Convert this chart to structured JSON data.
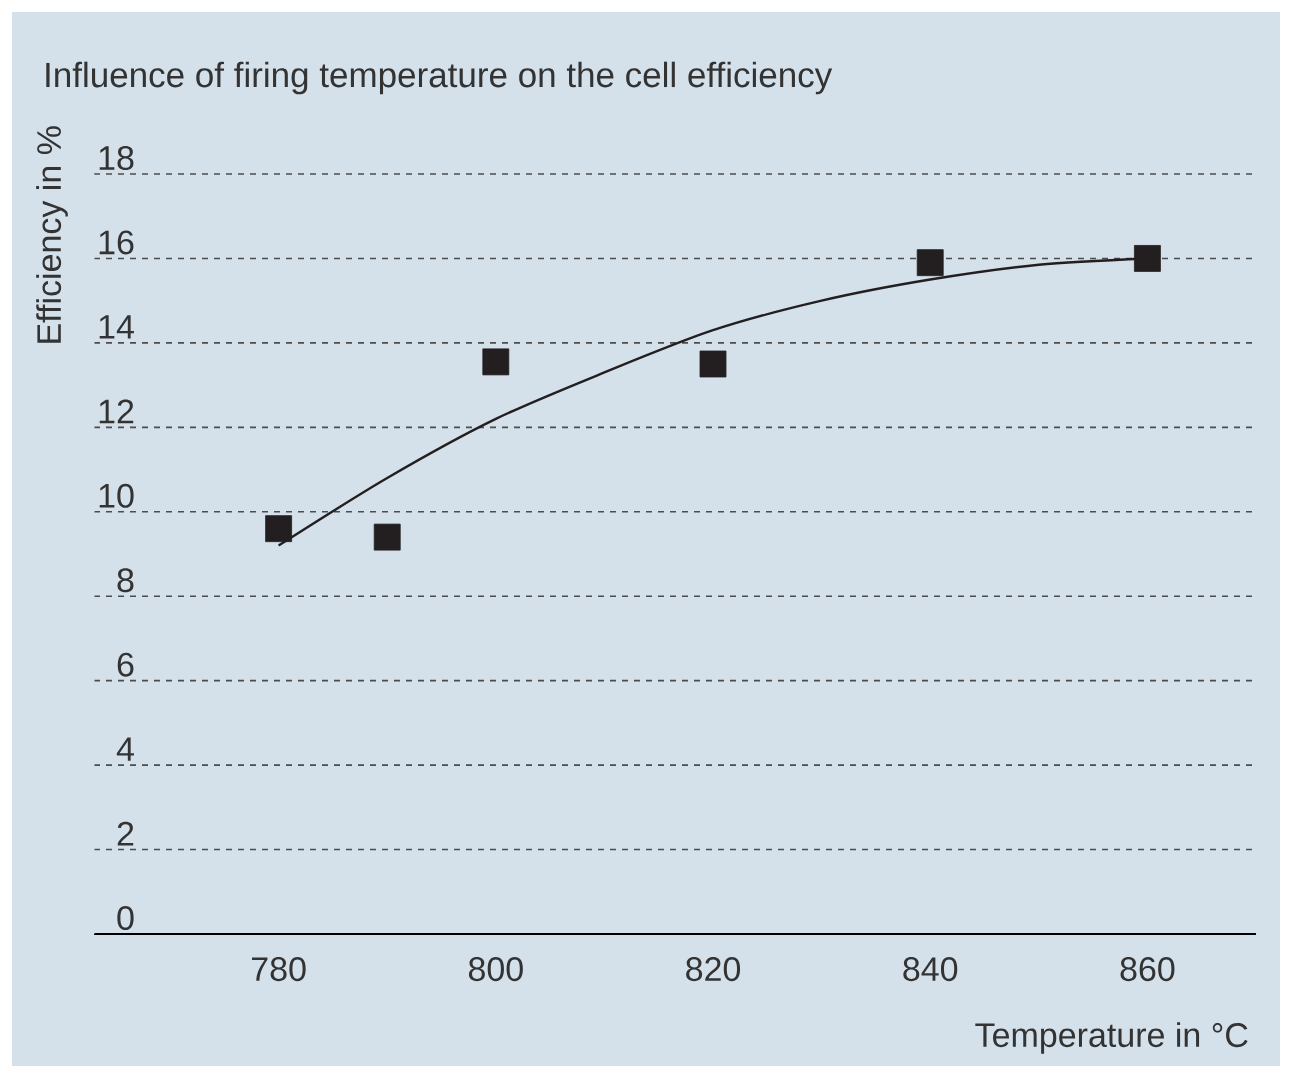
{
  "chart_data": {
    "type": "scatter",
    "title": "Influence of firing temperature on the cell efficiency",
    "xlabel": "Temperature in °C",
    "ylabel": "Efficiency in %",
    "xlim": [
      763,
      870
    ],
    "xticks": [
      780,
      800,
      820,
      840,
      860
    ],
    "ylim": [
      0,
      18
    ],
    "yticks": [
      0,
      2,
      4,
      6,
      8,
      10,
      12,
      14,
      16,
      18
    ],
    "grid": "y",
    "series": [
      {
        "marker": "square",
        "color": "#231f20",
        "x": [
          780,
          790,
          800,
          820,
          840,
          860
        ],
        "values": [
          9.6,
          9.4,
          13.55,
          13.5,
          15.9,
          16.0
        ]
      },
      {
        "type": "line",
        "marker": "none",
        "line_style": "solid",
        "color": "#231f20",
        "x": [
          780,
          790,
          800,
          810,
          820,
          830,
          840,
          850,
          860
        ],
        "values": [
          9.2,
          10.8,
          12.2,
          13.3,
          14.3,
          15.0,
          15.5,
          15.85,
          16.0
        ]
      }
    ]
  }
}
